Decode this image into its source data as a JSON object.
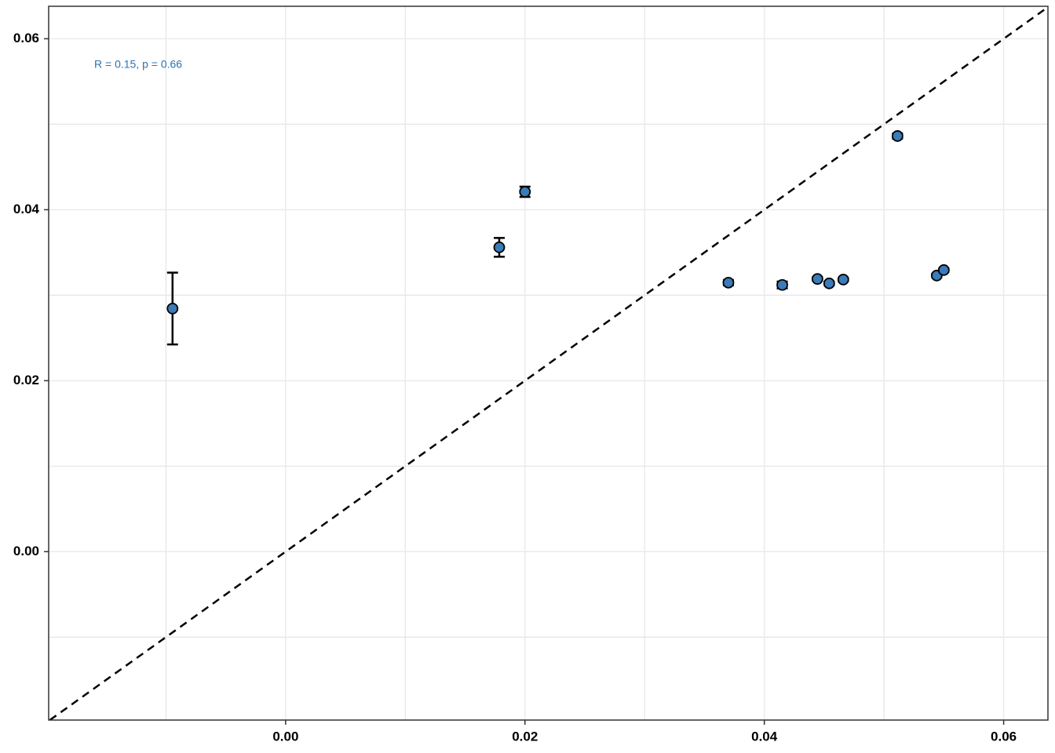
{
  "chart_data": {
    "type": "scatter",
    "x": [
      -0.00945,
      0.01785,
      0.02,
      0.037,
      0.0415,
      0.04444,
      0.04542,
      0.0466,
      0.05113,
      0.05441,
      0.055
    ],
    "values": [
      0.02844,
      0.0356,
      0.0421,
      0.03147,
      0.0312,
      0.0319,
      0.03138,
      0.03183,
      0.04862,
      0.0323,
      0.03294
    ],
    "errors": [
      0.0042,
      0.0011,
      0.0006,
      0.0003,
      0.0004,
      0.0002,
      0.0002,
      0.0002,
      0.0003,
      0.0002,
      0.0002
    ],
    "color": "#3a7bb8",
    "annotation": "R = 0.15, p = 0.66",
    "annotation_color": "#2c73b0",
    "xlim": [
      -0.0198,
      0.0637
    ],
    "ylim": [
      -0.0197,
      0.0638
    ],
    "xticks": [
      {
        "value": 0,
        "label": "0.00"
      },
      0.02,
      0.04,
      0.06
    ],
    "yticks": [
      {
        "value": 0,
        "label": "0.00"
      },
      0.02,
      0.04,
      0.06
    ],
    "minor_xticks": [
      -0.01,
      0.01,
      0.03,
      0.05
    ],
    "minor_yticks": [
      -0.01,
      0.01,
      0.03,
      0.05
    ],
    "grid": true,
    "identity_line": true
  }
}
